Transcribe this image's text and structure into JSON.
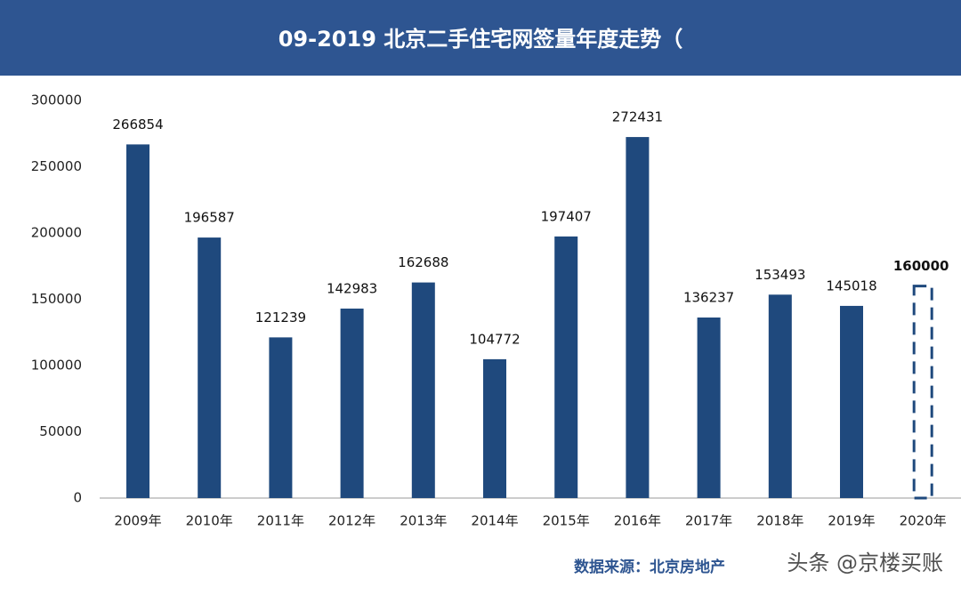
{
  "chart_data": {
    "type": "bar",
    "title": "09-2019 北京二手住宅网签量年度走势（",
    "categories": [
      "2009年",
      "2010年",
      "2011年",
      "2012年",
      "2013年",
      "2014年",
      "2015年",
      "2016年",
      "2017年",
      "2018年",
      "2019年",
      "2020年"
    ],
    "values": [
      266854,
      196587,
      121239,
      142983,
      162688,
      104772,
      197407,
      272431,
      136237,
      153493,
      145018,
      160000
    ],
    "bar_styles": [
      "solid",
      "solid",
      "solid",
      "solid",
      "solid",
      "solid",
      "solid",
      "solid",
      "solid",
      "solid",
      "solid",
      "dashed"
    ],
    "color": "#1f497d",
    "ylim": [
      0,
      300000
    ],
    "yticks": [
      0,
      50000,
      100000,
      150000,
      200000,
      250000,
      300000
    ],
    "grid": false,
    "source": "数据来源：北京房地产",
    "watermark": "头条 @京楼买账"
  }
}
